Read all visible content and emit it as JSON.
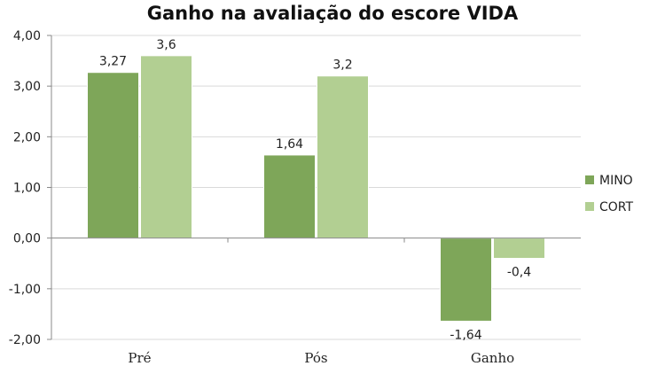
{
  "chart_data": {
    "type": "bar",
    "title": "Ganho na avaliação do escore VIDA",
    "categories": [
      "Pré",
      "Pós",
      "Ganho"
    ],
    "series": [
      {
        "name": "MINO",
        "values": [
          3.27,
          1.64,
          -1.64
        ],
        "labels": [
          "3,27",
          "1,64",
          "-1,64"
        ],
        "color": "#7ea659"
      },
      {
        "name": "CORT",
        "values": [
          3.6,
          3.2,
          -0.4
        ],
        "labels": [
          "3,6",
          "3,2",
          "-0,4"
        ],
        "color": "#b2cf92"
      }
    ],
    "ylim": [
      -2,
      4
    ],
    "yticks": [
      4,
      3,
      2,
      1,
      0,
      -1,
      -2
    ],
    "ytick_labels": [
      "4,00",
      "3,00",
      "2,00",
      "1,00",
      "0,00",
      "-1,00",
      "-2,00"
    ],
    "grid": true,
    "legend_position": "right"
  }
}
